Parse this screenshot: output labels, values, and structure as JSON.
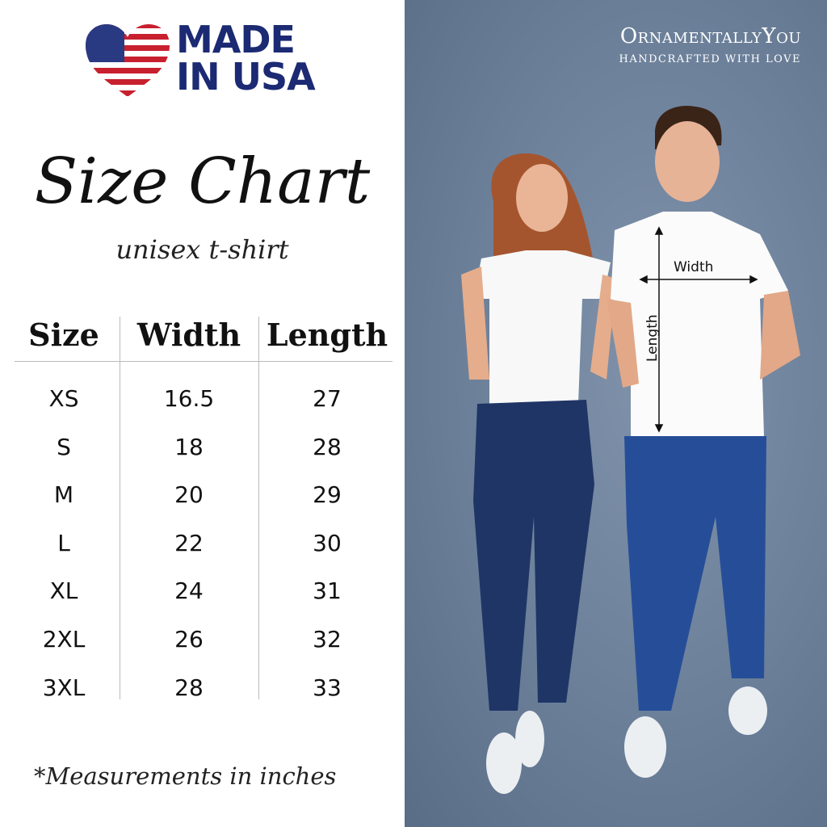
{
  "badge": {
    "text_line1": "MADE",
    "text_line2": "IN USA",
    "icon": "us-flag-heart-icon",
    "color": "#1b2a72"
  },
  "brand": {
    "name": "OrnamentallyYou",
    "tagline": "HANDCRAFTED WITH LOVE"
  },
  "title": "Size Chart",
  "subtitle": "unisex t-shirt",
  "table": {
    "headers": [
      "Size",
      "Width",
      "Length"
    ],
    "rows": [
      [
        "XS",
        "16.5",
        "27"
      ],
      [
        "S",
        "18",
        "28"
      ],
      [
        "M",
        "20",
        "29"
      ],
      [
        "L",
        "22",
        "30"
      ],
      [
        "XL",
        "24",
        "31"
      ],
      [
        "2XL",
        "26",
        "32"
      ],
      [
        "3XL",
        "28",
        "33"
      ]
    ]
  },
  "footnote": "*Measurements in inches",
  "photo": {
    "width_label": "Width",
    "length_label": "Length"
  }
}
